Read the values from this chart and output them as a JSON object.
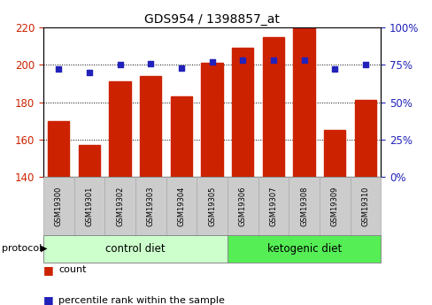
{
  "title": "GDS954 / 1398857_at",
  "samples": [
    "GSM19300",
    "GSM19301",
    "GSM19302",
    "GSM19303",
    "GSM19304",
    "GSM19305",
    "GSM19306",
    "GSM19307",
    "GSM19308",
    "GSM19309",
    "GSM19310"
  ],
  "counts": [
    170,
    157,
    191,
    194,
    183,
    201,
    209,
    215,
    220,
    165,
    181
  ],
  "percentile_ranks": [
    72,
    70,
    75,
    76,
    73,
    77,
    78,
    78,
    78,
    72,
    75
  ],
  "ylim_left": [
    140,
    220
  ],
  "ylim_right": [
    0,
    100
  ],
  "yticks_left": [
    140,
    160,
    180,
    200,
    220
  ],
  "yticks_right": [
    0,
    25,
    50,
    75,
    100
  ],
  "bar_color": "#cc2200",
  "dot_color": "#2222bb",
  "n_control": 6,
  "n_keto": 5,
  "control_label": "control diet",
  "ketogenic_label": "ketogenic diet",
  "protocol_label": "protocol",
  "legend_count": "count",
  "legend_percentile": "percentile rank within the sample",
  "control_color": "#ccffcc",
  "ketogenic_color": "#55ee55",
  "tick_bg_color": "#cccccc",
  "bar_width": 0.7
}
